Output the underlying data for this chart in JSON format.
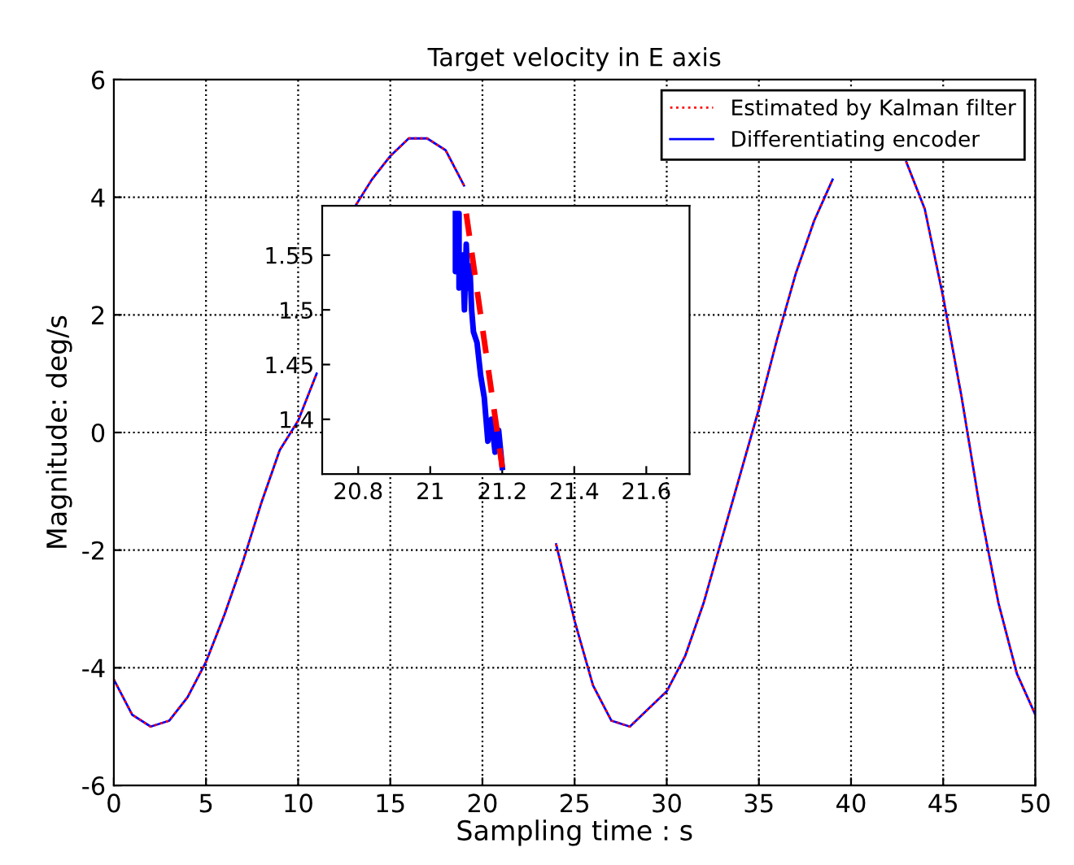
{
  "chart_data": [
    {
      "type": "line",
      "title": "Target velocity in E axis",
      "xlabel": "Sampling time : s",
      "ylabel": "Magnitude: deg/s",
      "x": [
        0,
        1,
        2,
        3,
        4,
        5,
        6,
        7,
        8,
        9,
        10,
        11,
        12,
        13,
        14,
        15,
        16,
        17,
        18,
        19,
        20,
        21,
        22,
        23,
        24,
        25,
        26,
        27,
        28,
        29,
        30,
        31,
        32,
        33,
        34,
        35,
        36,
        37,
        38,
        39,
        40,
        41,
        42,
        43,
        44,
        45,
        46,
        47,
        48,
        49,
        50
      ],
      "series": [
        {
          "name": "Estimated by Kalman filter",
          "color": "#ff0000",
          "line_style": "dotted",
          "values": [
            -4.2,
            -4.8,
            -5.0,
            -4.9,
            -4.5,
            -3.9,
            -3.1,
            -2.2,
            -1.2,
            -0.3,
            0.2,
            1.0,
            null,
            3.8,
            4.3,
            4.7,
            5.0,
            5.0,
            4.8,
            4.2,
            null,
            null,
            null,
            null,
            -1.9,
            -3.2,
            -4.3,
            -4.9,
            -5.0,
            -4.7,
            -4.4,
            -3.8,
            -2.9,
            -1.8,
            -0.7,
            0.4,
            1.6,
            2.7,
            3.6,
            4.3,
            null,
            null,
            null,
            4.6,
            3.8,
            2.3,
            0.6,
            -1.3,
            -2.9,
            -4.1,
            -4.8
          ]
        },
        {
          "name": "Differentiating encoder",
          "color": "#0000ff",
          "line_style": "solid",
          "values": [
            -4.2,
            -4.8,
            -5.0,
            -4.9,
            -4.5,
            -3.9,
            -3.1,
            -2.2,
            -1.2,
            -0.3,
            0.2,
            1.0,
            null,
            3.8,
            4.3,
            4.7,
            5.0,
            5.0,
            4.8,
            4.2,
            null,
            null,
            null,
            null,
            -1.9,
            -3.2,
            -4.3,
            -4.9,
            -5.0,
            -4.7,
            -4.4,
            -3.8,
            -2.9,
            -1.8,
            -0.7,
            0.4,
            1.6,
            2.7,
            3.6,
            4.3,
            null,
            null,
            null,
            4.6,
            3.8,
            2.3,
            0.6,
            -1.3,
            -2.9,
            -4.1,
            -4.8
          ]
        }
      ],
      "xlim": [
        0,
        50
      ],
      "xticks": [
        0,
        5,
        10,
        15,
        20,
        25,
        30,
        35,
        40,
        45,
        50
      ],
      "ylim": [
        -6,
        6
      ],
      "yticks": [
        -6,
        -4,
        -2,
        0,
        2,
        4,
        6
      ],
      "grid": true,
      "legend": "top right"
    },
    {
      "type": "line",
      "series": [
        {
          "color": "#ff0000",
          "line_style": "dashed",
          "x": [
            21.1,
            21.2
          ],
          "values": [
            1.588,
            1.356
          ]
        },
        {
          "color": "#0000ff",
          "line_style": "solid",
          "x": [
            21.07,
            21.07,
            21.075,
            21.08,
            21.08,
            21.09,
            21.095,
            21.1,
            21.105,
            21.11,
            21.115,
            21.12,
            21.13,
            21.14,
            21.15,
            21.16,
            21.17,
            21.18,
            21.19,
            21.2
          ],
          "values": [
            1.588,
            1.535,
            1.588,
            1.588,
            1.52,
            1.55,
            1.5,
            1.56,
            1.52,
            1.54,
            1.5,
            1.48,
            1.47,
            1.44,
            1.42,
            1.38,
            1.4,
            1.37,
            1.39,
            1.356
          ]
        }
      ],
      "xlim": [
        20.7,
        21.72
      ],
      "xticks": [
        20.8,
        21,
        21.2,
        21.4,
        21.6
      ],
      "ylim": [
        1.35,
        1.595
      ],
      "yticks": [
        1.4,
        1.45,
        1.5,
        1.55
      ]
    }
  ]
}
